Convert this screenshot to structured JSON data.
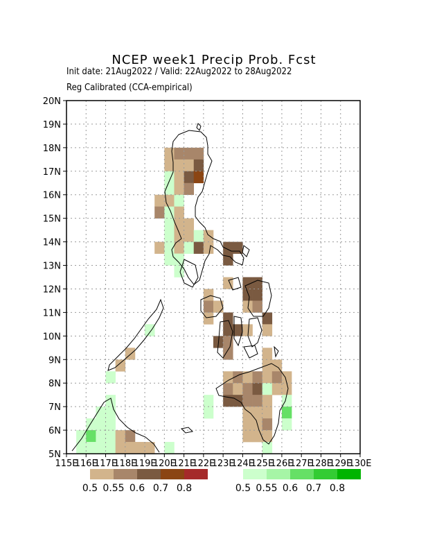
{
  "title": "NCEP week1 Precip Prob. Fcst",
  "subtitle": "Init date: 21Aug2022 / Valid: 22Aug2022 to 28Aug2022",
  "method": "Reg Calibrated (CCA-empirical)",
  "map": {
    "lon_range": [
      115,
      130
    ],
    "lat_range": [
      5,
      20
    ],
    "x_tick_labels": [
      "115E",
      "116E",
      "117E",
      "118E",
      "119E",
      "120E",
      "121E",
      "122E",
      "123E",
      "124E",
      "125E",
      "126E",
      "127E",
      "128E",
      "129E",
      "130E"
    ],
    "y_tick_labels": [
      "5N",
      "6N",
      "7N",
      "8N",
      "9N",
      "10N",
      "11N",
      "12N",
      "13N",
      "14N",
      "15N",
      "16N",
      "17N",
      "18N",
      "19N",
      "20N"
    ],
    "grid": true,
    "cell_deg": 0.5
  },
  "colors": {
    "dry": [
      "#d2b48c",
      "#a8866a",
      "#7a5a41",
      "#8b4513",
      "#a52a2a"
    ],
    "wet": [
      "#ccffcc",
      "#a6f5a6",
      "#66e066",
      "#33cc33",
      "#00b400"
    ]
  },
  "legends": {
    "dry_labels": [
      "0.5",
      "0.55",
      "0.6",
      "0.7",
      "0.8"
    ],
    "wet_labels": [
      "0.5",
      "0.55",
      "0.6",
      "0.7",
      "0.8"
    ]
  },
  "chart_data": {
    "type": "heatmap",
    "title": "NCEP week1 Precip Prob. Fcst",
    "cells": [
      {
        "lon": 120.25,
        "lat": 17.75,
        "cat": "dry",
        "level": 0
      },
      {
        "lon": 120.75,
        "lat": 17.75,
        "cat": "dry",
        "level": 1
      },
      {
        "lon": 121.25,
        "lat": 17.75,
        "cat": "dry",
        "level": 1
      },
      {
        "lon": 121.75,
        "lat": 17.75,
        "cat": "dry",
        "level": 1
      },
      {
        "lon": 120.25,
        "lat": 17.25,
        "cat": "dry",
        "level": 0
      },
      {
        "lon": 120.75,
        "lat": 17.25,
        "cat": "dry",
        "level": 0
      },
      {
        "lon": 121.25,
        "lat": 17.25,
        "cat": "dry",
        "level": 0
      },
      {
        "lon": 121.75,
        "lat": 17.25,
        "cat": "dry",
        "level": 2
      },
      {
        "lon": 120.25,
        "lat": 16.75,
        "cat": "wet",
        "level": 0
      },
      {
        "lon": 120.75,
        "lat": 16.75,
        "cat": "dry",
        "level": 0
      },
      {
        "lon": 121.25,
        "lat": 16.75,
        "cat": "dry",
        "level": 2
      },
      {
        "lon": 121.75,
        "lat": 16.75,
        "cat": "dry",
        "level": 3
      },
      {
        "lon": 120.25,
        "lat": 16.25,
        "cat": "wet",
        "level": 0
      },
      {
        "lon": 120.75,
        "lat": 16.25,
        "cat": "dry",
        "level": 0
      },
      {
        "lon": 121.25,
        "lat": 16.25,
        "cat": "dry",
        "level": 1
      },
      {
        "lon": 119.75,
        "lat": 15.75,
        "cat": "dry",
        "level": 0
      },
      {
        "lon": 120.25,
        "lat": 15.75,
        "cat": "dry",
        "level": 0
      },
      {
        "lon": 120.75,
        "lat": 15.75,
        "cat": "wet",
        "level": 0
      },
      {
        "lon": 119.75,
        "lat": 15.25,
        "cat": "dry",
        "level": 1
      },
      {
        "lon": 120.25,
        "lat": 15.25,
        "cat": "wet",
        "level": 0
      },
      {
        "lon": 120.75,
        "lat": 15.25,
        "cat": "dry",
        "level": 0
      },
      {
        "lon": 120.25,
        "lat": 14.75,
        "cat": "wet",
        "level": 0
      },
      {
        "lon": 120.75,
        "lat": 14.75,
        "cat": "dry",
        "level": 0
      },
      {
        "lon": 121.25,
        "lat": 14.75,
        "cat": "dry",
        "level": 0
      },
      {
        "lon": 120.25,
        "lat": 14.25,
        "cat": "wet",
        "level": 0
      },
      {
        "lon": 120.75,
        "lat": 14.25,
        "cat": "dry",
        "level": 0
      },
      {
        "lon": 121.25,
        "lat": 14.25,
        "cat": "dry",
        "level": 0
      },
      {
        "lon": 121.75,
        "lat": 14.25,
        "cat": "wet",
        "level": 0
      },
      {
        "lon": 122.25,
        "lat": 14.25,
        "cat": "dry",
        "level": 0
      },
      {
        "lon": 119.75,
        "lat": 13.75,
        "cat": "dry",
        "level": 0
      },
      {
        "lon": 120.25,
        "lat": 13.75,
        "cat": "wet",
        "level": 0
      },
      {
        "lon": 120.75,
        "lat": 13.75,
        "cat": "dry",
        "level": 0
      },
      {
        "lon": 121.25,
        "lat": 13.75,
        "cat": "wet",
        "level": 0
      },
      {
        "lon": 121.75,
        "lat": 13.75,
        "cat": "dry",
        "level": 2
      },
      {
        "lon": 122.25,
        "lat": 13.75,
        "cat": "dry",
        "level": 0
      },
      {
        "lon": 123.25,
        "lat": 13.75,
        "cat": "dry",
        "level": 2
      },
      {
        "lon": 123.75,
        "lat": 13.75,
        "cat": "dry",
        "level": 2
      },
      {
        "lon": 120.25,
        "lat": 13.25,
        "cat": "wet",
        "level": 0
      },
      {
        "lon": 120.75,
        "lat": 13.25,
        "cat": "wet",
        "level": 0
      },
      {
        "lon": 123.25,
        "lat": 13.25,
        "cat": "dry",
        "level": 2
      },
      {
        "lon": 120.75,
        "lat": 12.75,
        "cat": "wet",
        "level": 0
      },
      {
        "lon": 123.25,
        "lat": 12.25,
        "cat": "dry",
        "level": 0
      },
      {
        "lon": 124.25,
        "lat": 12.25,
        "cat": "dry",
        "level": 2
      },
      {
        "lon": 124.75,
        "lat": 12.25,
        "cat": "dry",
        "level": 2
      },
      {
        "lon": 122.25,
        "lat": 11.75,
        "cat": "dry",
        "level": 0
      },
      {
        "lon": 124.25,
        "lat": 11.75,
        "cat": "dry",
        "level": 2
      },
      {
        "lon": 124.75,
        "lat": 11.75,
        "cat": "dry",
        "level": 2
      },
      {
        "lon": 122.25,
        "lat": 11.25,
        "cat": "dry",
        "level": 1
      },
      {
        "lon": 122.75,
        "lat": 11.25,
        "cat": "dry",
        "level": 0
      },
      {
        "lon": 124.25,
        "lat": 11.25,
        "cat": "dry",
        "level": 0
      },
      {
        "lon": 124.75,
        "lat": 11.25,
        "cat": "dry",
        "level": 1
      },
      {
        "lon": 122.25,
        "lat": 10.75,
        "cat": "dry",
        "level": 0
      },
      {
        "lon": 123.25,
        "lat": 10.75,
        "cat": "dry",
        "level": 2
      },
      {
        "lon": 125.25,
        "lat": 10.75,
        "cat": "dry",
        "level": 2
      },
      {
        "lon": 123.25,
        "lat": 10.25,
        "cat": "dry",
        "level": 2
      },
      {
        "lon": 123.75,
        "lat": 10.25,
        "cat": "dry",
        "level": 2
      },
      {
        "lon": 124.25,
        "lat": 10.25,
        "cat": "dry",
        "level": 0
      },
      {
        "lon": 125.25,
        "lat": 10.25,
        "cat": "dry",
        "level": 0
      },
      {
        "lon": 122.75,
        "lat": 9.75,
        "cat": "dry",
        "level": 2
      },
      {
        "lon": 123.25,
        "lat": 9.75,
        "cat": "dry",
        "level": 1
      },
      {
        "lon": 123.25,
        "lat": 9.25,
        "cat": "dry",
        "level": 1
      },
      {
        "lon": 125.25,
        "lat": 9.25,
        "cat": "dry",
        "level": 0
      },
      {
        "lon": 125.25,
        "lat": 8.75,
        "cat": "dry",
        "level": 0
      },
      {
        "lon": 125.75,
        "lat": 8.75,
        "cat": "dry",
        "level": 0
      },
      {
        "lon": 123.25,
        "lat": 8.25,
        "cat": "dry",
        "level": 0
      },
      {
        "lon": 123.75,
        "lat": 8.25,
        "cat": "dry",
        "level": 1
      },
      {
        "lon": 124.25,
        "lat": 8.25,
        "cat": "dry",
        "level": 0
      },
      {
        "lon": 124.75,
        "lat": 8.25,
        "cat": "dry",
        "level": 1
      },
      {
        "lon": 125.25,
        "lat": 8.25,
        "cat": "dry",
        "level": 0
      },
      {
        "lon": 125.75,
        "lat": 8.25,
        "cat": "dry",
        "level": 1
      },
      {
        "lon": 126.25,
        "lat": 8.25,
        "cat": "dry",
        "level": 0
      },
      {
        "lon": 123.25,
        "lat": 7.75,
        "cat": "dry",
        "level": 1
      },
      {
        "lon": 123.75,
        "lat": 7.75,
        "cat": "dry",
        "level": 0
      },
      {
        "lon": 124.25,
        "lat": 7.75,
        "cat": "dry",
        "level": 1
      },
      {
        "lon": 124.75,
        "lat": 7.75,
        "cat": "dry",
        "level": 2
      },
      {
        "lon": 125.25,
        "lat": 7.75,
        "cat": "wet",
        "level": 0
      },
      {
        "lon": 125.75,
        "lat": 7.75,
        "cat": "dry",
        "level": 0
      },
      {
        "lon": 126.25,
        "lat": 7.75,
        "cat": "dry",
        "level": 0
      },
      {
        "lon": 123.25,
        "lat": 7.25,
        "cat": "dry",
        "level": 2
      },
      {
        "lon": 123.75,
        "lat": 7.25,
        "cat": "dry",
        "level": 2
      },
      {
        "lon": 124.25,
        "lat": 7.25,
        "cat": "dry",
        "level": 1
      },
      {
        "lon": 124.75,
        "lat": 7.25,
        "cat": "dry",
        "level": 1
      },
      {
        "lon": 125.25,
        "lat": 7.25,
        "cat": "dry",
        "level": 0
      },
      {
        "lon": 126.25,
        "lat": 7.25,
        "cat": "wet",
        "level": 0
      },
      {
        "lon": 124.25,
        "lat": 6.75,
        "cat": "dry",
        "level": 0
      },
      {
        "lon": 124.75,
        "lat": 6.75,
        "cat": "dry",
        "level": 0
      },
      {
        "lon": 125.25,
        "lat": 6.75,
        "cat": "dry",
        "level": 0
      },
      {
        "lon": 126.25,
        "lat": 6.75,
        "cat": "wet",
        "level": 2
      },
      {
        "lon": 124.25,
        "lat": 6.25,
        "cat": "dry",
        "level": 0
      },
      {
        "lon": 124.75,
        "lat": 6.25,
        "cat": "dry",
        "level": 0
      },
      {
        "lon": 125.25,
        "lat": 6.25,
        "cat": "dry",
        "level": 1
      },
      {
        "lon": 126.25,
        "lat": 6.25,
        "cat": "wet",
        "level": 0
      },
      {
        "lon": 124.25,
        "lat": 5.75,
        "cat": "dry",
        "level": 0
      },
      {
        "lon": 124.75,
        "lat": 5.75,
        "cat": "dry",
        "level": 0
      },
      {
        "lon": 125.25,
        "lat": 5.75,
        "cat": "dry",
        "level": 0
      },
      {
        "lon": 125.25,
        "lat": 5.25,
        "cat": "wet",
        "level": 0
      },
      {
        "lon": 122.25,
        "lat": 7.25,
        "cat": "wet",
        "level": 0
      },
      {
        "lon": 122.25,
        "lat": 6.75,
        "cat": "wet",
        "level": 0
      },
      {
        "lon": 118.25,
        "lat": 9.25,
        "cat": "dry",
        "level": 0
      },
      {
        "lon": 117.75,
        "lat": 8.75,
        "cat": "dry",
        "level": 0
      },
      {
        "lon": 117.25,
        "lat": 8.25,
        "cat": "wet",
        "level": 0
      },
      {
        "lon": 119.25,
        "lat": 10.25,
        "cat": "wet",
        "level": 0
      },
      {
        "lon": 117.25,
        "lat": 7.25,
        "cat": "wet",
        "level": 0
      },
      {
        "lon": 116.75,
        "lat": 6.75,
        "cat": "wet",
        "level": 0
      },
      {
        "lon": 117.25,
        "lat": 6.75,
        "cat": "wet",
        "level": 0
      },
      {
        "lon": 116.25,
        "lat": 6.25,
        "cat": "wet",
        "level": 0
      },
      {
        "lon": 116.75,
        "lat": 6.25,
        "cat": "wet",
        "level": 0
      },
      {
        "lon": 117.25,
        "lat": 6.25,
        "cat": "wet",
        "level": 0
      },
      {
        "lon": 115.75,
        "lat": 5.75,
        "cat": "wet",
        "level": 0
      },
      {
        "lon": 116.25,
        "lat": 5.75,
        "cat": "wet",
        "level": 2
      },
      {
        "lon": 116.75,
        "lat": 5.75,
        "cat": "wet",
        "level": 0
      },
      {
        "lon": 117.25,
        "lat": 5.75,
        "cat": "wet",
        "level": 0
      },
      {
        "lon": 117.75,
        "lat": 5.75,
        "cat": "dry",
        "level": 0
      },
      {
        "lon": 118.25,
        "lat": 5.75,
        "cat": "dry",
        "level": 1
      },
      {
        "lon": 115.75,
        "lat": 5.25,
        "cat": "wet",
        "level": 0
      },
      {
        "lon": 116.25,
        "lat": 5.25,
        "cat": "wet",
        "level": 0
      },
      {
        "lon": 116.75,
        "lat": 5.25,
        "cat": "wet",
        "level": 0
      },
      {
        "lon": 117.25,
        "lat": 5.25,
        "cat": "wet",
        "level": 0
      },
      {
        "lon": 117.75,
        "lat": 5.25,
        "cat": "dry",
        "level": 0
      },
      {
        "lon": 118.25,
        "lat": 5.25,
        "cat": "dry",
        "level": 0
      },
      {
        "lon": 118.75,
        "lat": 5.25,
        "cat": "dry",
        "level": 0
      },
      {
        "lon": 119.25,
        "lat": 5.25,
        "cat": "dry",
        "level": 0
      },
      {
        "lon": 120.25,
        "lat": 5.25,
        "cat": "wet",
        "level": 0
      }
    ]
  }
}
